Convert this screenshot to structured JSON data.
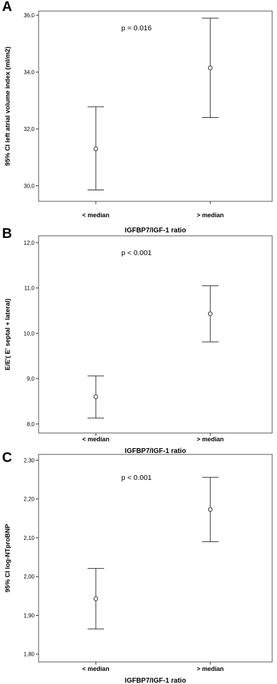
{
  "chart_data": [
    {
      "type": "errorbar",
      "panel_label": "A",
      "categories": [
        "< median",
        "> median"
      ],
      "mean": [
        31.3,
        34.15
      ],
      "ci_low": [
        29.85,
        32.4
      ],
      "ci_high": [
        32.78,
        35.9
      ],
      "xlabel": "IGFBP7/IGF-1 ratio",
      "ylabel": "95% CI left atrial volume index (ml/m2)",
      "ylim": [
        29.45,
        36.15
      ],
      "yticks": [
        30,
        32,
        34,
        36
      ],
      "ytick_labels": [
        "30,0",
        "32,0",
        "34,0",
        "36,0"
      ],
      "annotation": "p = 0.016"
    },
    {
      "type": "errorbar",
      "panel_label": "B",
      "categories": [
        "< median",
        "> median"
      ],
      "mean": [
        8.6,
        10.43
      ],
      "ci_low": [
        8.13,
        9.81
      ],
      "ci_high": [
        9.06,
        11.05
      ],
      "xlabel": "IGFBP7/IGF-1 ratio",
      "ylabel": "E/E'( E' septal + lateral)",
      "ylim": [
        7.8,
        12.15
      ],
      "yticks": [
        8,
        9,
        10,
        11,
        12
      ],
      "ytick_labels": [
        "8,0",
        "9,0",
        "10,0",
        "11,0",
        "12,0"
      ],
      "annotation": "p < 0.001"
    },
    {
      "type": "errorbar",
      "panel_label": "C",
      "categories": [
        "< median",
        "> median"
      ],
      "mean": [
        1.943,
        2.173
      ],
      "ci_low": [
        1.865,
        2.09
      ],
      "ci_high": [
        2.021,
        2.256
      ],
      "xlabel": "IGFBP7/IGF-1 ratio",
      "ylabel": "95% CI log-NTproBNP",
      "ylim": [
        1.78,
        2.315
      ],
      "yticks": [
        1.8,
        1.9,
        2.0,
        2.1,
        2.2,
        2.3
      ],
      "ytick_labels": [
        "1,80",
        "1,90",
        "2,00",
        "2,10",
        "2,20",
        "2,30"
      ],
      "annotation": "p < 0.001"
    }
  ]
}
